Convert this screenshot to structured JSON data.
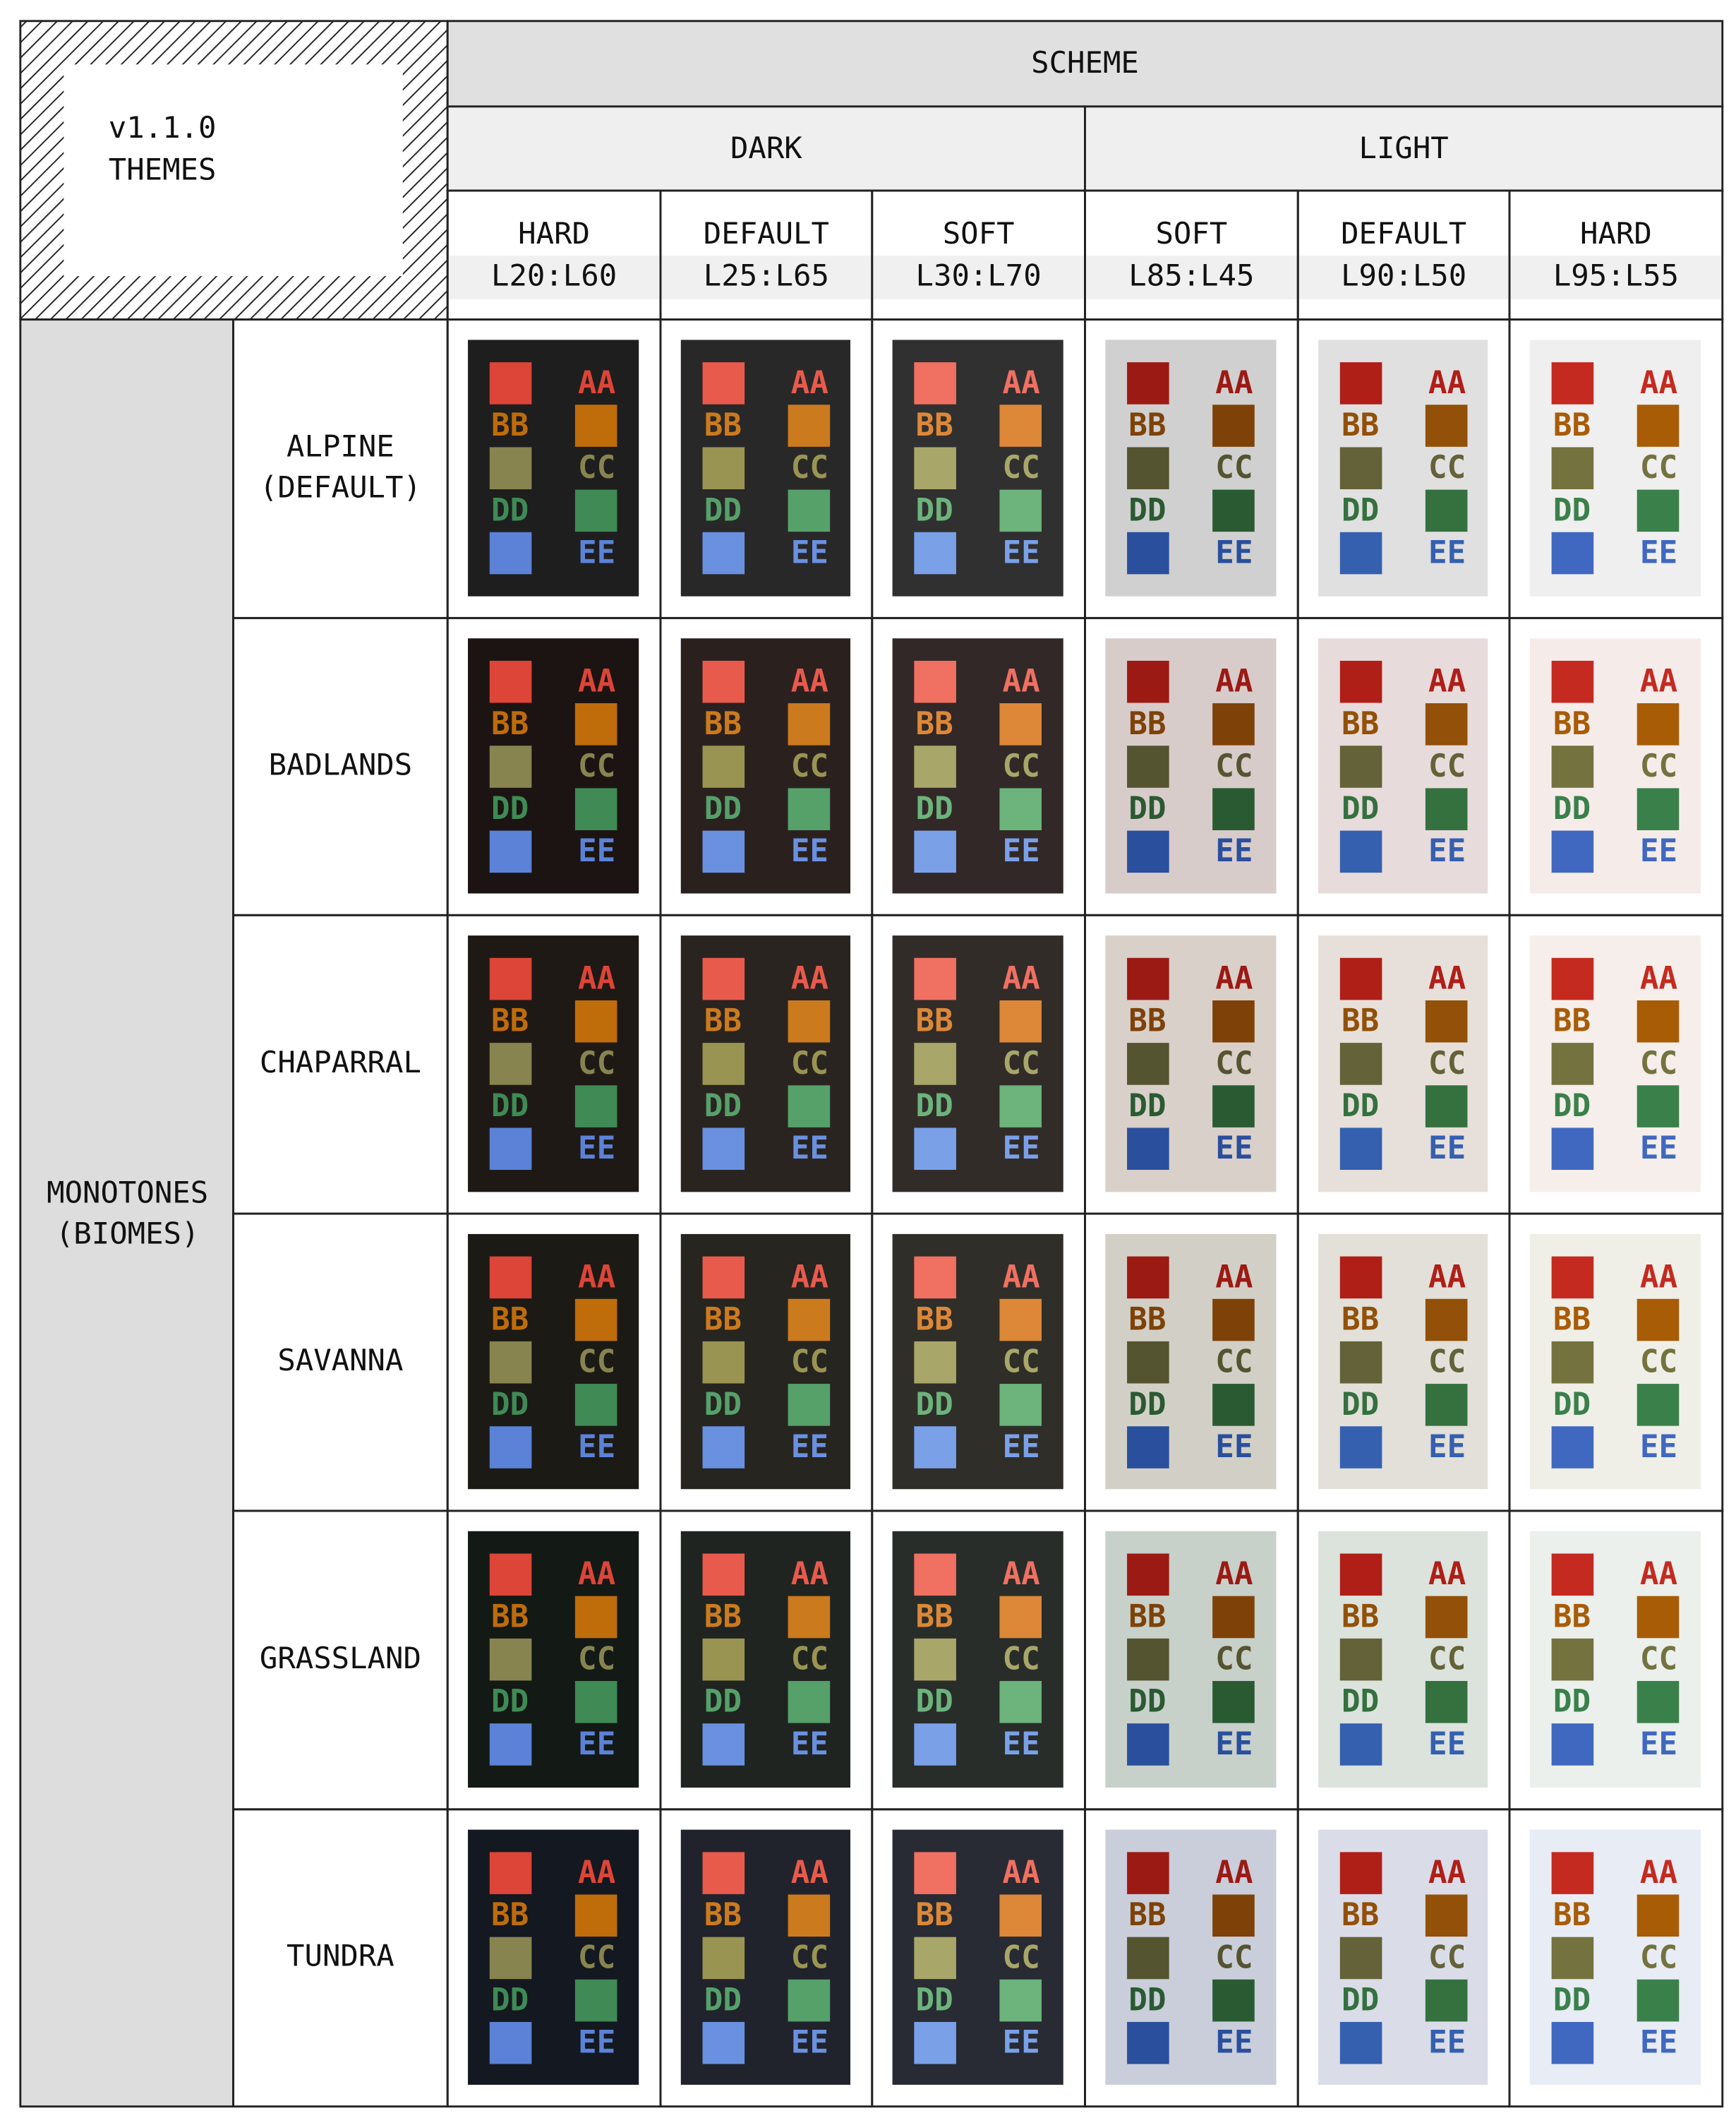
{
  "header": {
    "title": [
      "v1.1.0",
      "THEMES"
    ],
    "scheme": "SCHEME",
    "groups": [
      "DARK",
      "LIGHT"
    ],
    "columns": [
      {
        "name": "HARD",
        "range": "L20:L60"
      },
      {
        "name": "DEFAULT",
        "range": "L25:L65"
      },
      {
        "name": "SOFT",
        "range": "L30:L70"
      },
      {
        "name": "SOFT",
        "range": "L85:L45"
      },
      {
        "name": "DEFAULT",
        "range": "L90:L50"
      },
      {
        "name": "HARD",
        "range": "L95:L55"
      }
    ]
  },
  "row_group": [
    "MONOTONES",
    "(BIOMES)"
  ],
  "rows": [
    [
      "ALPINE",
      "(DEFAULT)"
    ],
    [
      "BADLANDS"
    ],
    [
      "CHAPARRAL"
    ],
    [
      "SAVANNA"
    ],
    [
      "GRASSLAND"
    ],
    [
      "TUNDRA"
    ]
  ],
  "swatch_labels": [
    "AA",
    "BB",
    "CC",
    "DD",
    "EE"
  ]
}
